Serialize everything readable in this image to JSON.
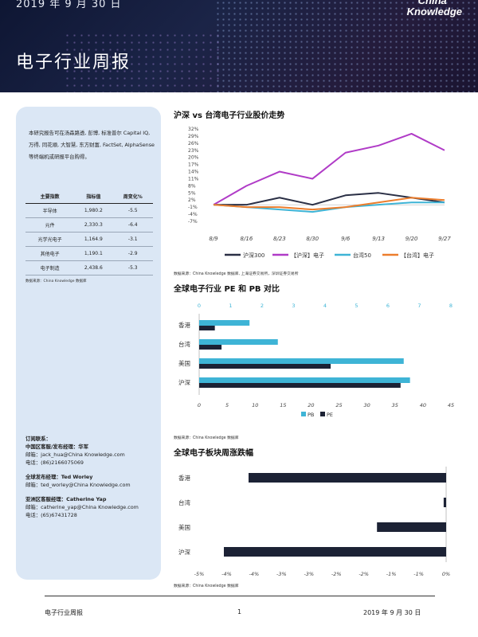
{
  "header": {
    "date": "2019 年 9 月 30 日",
    "title": "电子行业周报",
    "brand_line1": "China",
    "brand_line2": "Knowledge"
  },
  "sidebar": {
    "intro": "本研究报告可在汤森路透, 彭博, 标准普尔 Capital IQ, 万得, 同花顺, 大智慧, 东方财富, FactSet, AlphaSense 等终端机或研报平台购得。",
    "table": {
      "headers": [
        "主要指数",
        "指标值",
        "周变化%"
      ],
      "rows": [
        [
          "半导体",
          "1,980.2",
          "-5.5"
        ],
        [
          "元件",
          "2,330.3",
          "-6.4"
        ],
        [
          "光学光电子",
          "1,164.9",
          "-3.1"
        ],
        [
          "其他电子",
          "1,190.1",
          "-2.9"
        ],
        [
          "电子制造",
          "2,438.6",
          "-5.3"
        ]
      ]
    },
    "table_source": "数据来源：China Knowledge 数据库",
    "contacts": {
      "label": "订阅联系：",
      "china_title": "中国区客服/发布经理：华军",
      "china_email": "邮箱：jack_hua@China Knowledge.com",
      "china_phone": "电话：(86)2166075069",
      "global_title": "全球发布经理：Ted Worley",
      "global_email": "邮箱：ted_worley@China Knowledge.com",
      "asia_title": "亚洲区客服经理：Catherine Yap",
      "asia_email": "邮箱：catherine_yap@China Knowledge.com",
      "asia_phone": "电话：(65)67431728"
    }
  },
  "chart1": {
    "title": "沪深 vs 台湾电子行业股价走势",
    "source": "数据来源：China Knowledge 数据库, 上海证券交易所，深圳证券交易所"
  },
  "chart2": {
    "title": "全球电子行业 PE 和 PB 对比",
    "source": "数据来源：China Knowledge 数据库"
  },
  "chart3": {
    "title": "全球电子板块周涨跌幅",
    "source": "数据来源：China Knowledge 数据库"
  },
  "footer": {
    "left": "电子行业周报",
    "page": "1",
    "right": "2019 年 9 月 30 日"
  },
  "chart_data": [
    {
      "type": "line",
      "x": [
        "8/9",
        "8/16",
        "8/23",
        "8/30",
        "9/6",
        "9/13",
        "9/20",
        "9/27"
      ],
      "y_ticks": [
        "32%",
        "29%",
        "26%",
        "23%",
        "20%",
        "17%",
        "14%",
        "11%",
        "8%",
        "5%",
        "2%",
        "-1%",
        "-4%",
        "-7%"
      ],
      "ylim": [
        -7,
        32
      ],
      "legend_position": "bottom",
      "series": [
        {
          "name": "沪深300",
          "color": "#2a2f45",
          "values": [
            0,
            0,
            3,
            0,
            4,
            5,
            3,
            1
          ]
        },
        {
          "name": "【沪深】电子",
          "color": "#b03bc7",
          "values": [
            0,
            8,
            14,
            11,
            22,
            25,
            30,
            23
          ]
        },
        {
          "name": "台湾50",
          "color": "#3eb4d6",
          "values": [
            0,
            -1,
            -2,
            -3,
            -1,
            0,
            1,
            1
          ]
        },
        {
          "name": "【台湾】电子",
          "color": "#ec7d2c",
          "values": [
            0,
            -1,
            -1,
            -2,
            -1,
            1,
            3,
            2
          ]
        }
      ]
    },
    {
      "type": "bar",
      "orientation": "horizontal",
      "categories": [
        "香港",
        "台湾",
        "美国",
        "沪深"
      ],
      "top_axis_ticks": [
        "0",
        "1",
        "2",
        "3",
        "4",
        "5",
        "6",
        "7",
        "8"
      ],
      "bottom_axis_ticks": [
        "0",
        "5",
        "10",
        "15",
        "20",
        "25",
        "30",
        "35",
        "40",
        "45"
      ],
      "legend_position": "bottom",
      "series": [
        {
          "name": "PB",
          "axis": "top",
          "color": "#3eb4d6",
          "values": [
            1.6,
            2.5,
            6.5,
            6.7
          ]
        },
        {
          "name": "PE",
          "axis": "bottom",
          "color": "#1c2235",
          "values": [
            2.8,
            4.0,
            23.5,
            36.0
          ]
        }
      ]
    },
    {
      "type": "bar",
      "orientation": "horizontal",
      "categories": [
        "香港",
        "台湾",
        "美国",
        "沪深"
      ],
      "x_ticks": [
        "-5%",
        "-4%",
        "-4%",
        "-3%",
        "-3%",
        "-2%",
        "-2%",
        "-1%",
        "-1%",
        "0%"
      ],
      "xlim": [
        -5.0,
        0
      ],
      "series": [
        {
          "name": "周涨跌幅",
          "color": "#1c2235",
          "values": [
            -4.0,
            -0.05,
            -1.4,
            -4.5
          ]
        }
      ]
    }
  ]
}
